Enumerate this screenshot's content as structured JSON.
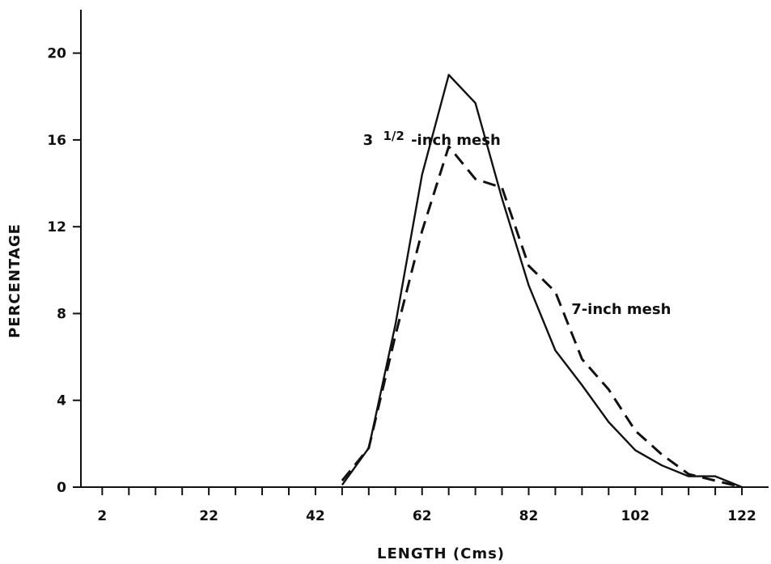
{
  "chart_data": {
    "type": "line",
    "title": "",
    "xlabel": "LENGTH (Cms)",
    "ylabel": "PERCENTAGE",
    "xlim": [
      -2,
      127
    ],
    "ylim": [
      0,
      22
    ],
    "xticks": [
      2,
      7,
      12,
      17,
      22,
      27,
      32,
      37,
      42,
      47,
      52,
      57,
      62,
      67,
      72,
      77,
      82,
      87,
      92,
      97,
      102,
      107,
      112,
      117,
      122
    ],
    "xtick_labels": [
      2,
      22,
      42,
      62,
      82,
      102,
      122
    ],
    "yticks": [
      0,
      4,
      8,
      12,
      16,
      20
    ],
    "grid": false,
    "legend": "none",
    "series": [
      {
        "name": "3 1/2-inch mesh",
        "style": "solid",
        "x": [
          47,
          52,
          57,
          62,
          67,
          72,
          77,
          82,
          87,
          92,
          97,
          102,
          107,
          112,
          117,
          122
        ],
        "y": [
          0.1,
          1.8,
          7.5,
          14.4,
          19.0,
          17.7,
          13.3,
          9.3,
          6.3,
          4.7,
          3.0,
          1.7,
          1.0,
          0.5,
          0.5,
          0.0
        ]
      },
      {
        "name": "7-inch mesh",
        "style": "dashed",
        "x": [
          47,
          52,
          57,
          62,
          67,
          72,
          77,
          82,
          87,
          92,
          97,
          102,
          107,
          112,
          117,
          122
        ],
        "y": [
          0.3,
          1.8,
          7.0,
          11.8,
          15.7,
          14.2,
          13.8,
          10.2,
          9.0,
          5.9,
          4.5,
          2.6,
          1.5,
          0.6,
          0.3,
          0.0
        ]
      }
    ],
    "annotations": [
      {
        "text_main": "3",
        "text_frac": "1/2",
        "text_rest": "-inch mesh",
        "target": "series-0"
      },
      {
        "text": "7-inch mesh",
        "target": "series-1"
      }
    ]
  }
}
